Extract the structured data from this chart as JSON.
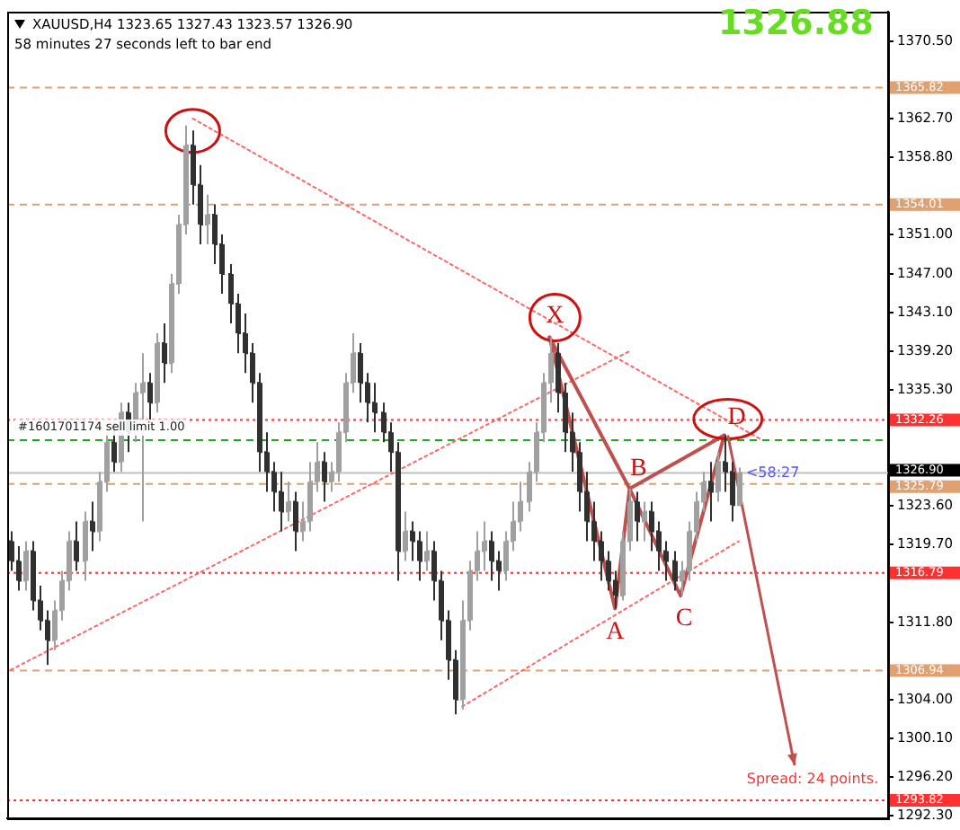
{
  "chart_data": {
    "type": "candlestick",
    "title": "XAUUSD,H4  1323.65 1327.43 1323.57 1326.90",
    "subtitle": "58 minutes 27 seconds left to bar end",
    "categories": [
      null,
      null,
      null,
      null,
      null,
      null,
      null,
      null,
      null,
      null,
      null,
      null,
      null,
      null,
      null,
      null,
      null,
      null,
      null,
      null,
      null,
      null,
      null,
      null,
      null,
      null,
      null,
      null,
      null,
      null,
      null,
      null,
      null,
      null,
      null,
      null,
      null,
      null,
      null,
      null,
      null,
      null,
      null,
      null,
      null,
      null,
      null,
      null,
      null,
      null,
      null,
      null,
      null,
      null,
      null,
      null,
      null,
      null,
      null,
      null,
      null,
      null,
      null,
      null,
      null,
      null,
      null,
      null,
      null,
      null,
      null,
      null,
      null,
      null,
      null,
      null,
      null,
      null,
      null,
      null,
      null,
      null,
      null,
      null,
      null,
      null,
      null,
      null,
      null,
      null,
      null,
      null,
      null,
      null,
      null,
      null,
      null,
      null,
      null,
      null,
      null,
      null,
      null,
      null,
      null,
      null,
      null,
      null,
      null,
      null,
      null,
      null,
      null,
      null,
      null,
      null,
      null,
      null,
      null,
      null,
      null
    ],
    "colors": [
      "#303030",
      "#303030",
      "#a0a0a0",
      "#303030",
      "#303030",
      "#303030",
      "#a0a0a0",
      "#a0a0a0",
      "#a0a0a0",
      "#303030",
      "#a0a0a0",
      "#303030",
      "#a0a0a0",
      "#a0a0a0",
      "#303030",
      "#a0a0a0",
      "#303030",
      "#a0a0a0",
      "#a0a0a0",
      "#303030",
      "#a0a0a0",
      "#303030",
      "#a0a0a0",
      "#a0a0a0",
      "#a0a0a0",
      "#303030",
      "#303030",
      "#a0a0a0",
      "#303030",
      "#303030",
      "#303030",
      "#303030",
      "#303030",
      "#303030",
      "#303030",
      "#303030",
      "#303030",
      "#303030",
      "#a0a0a0",
      "#303030",
      "#a0a0a0",
      "#a0a0a0",
      "#a0a0a0",
      "#303030",
      "#a0a0a0",
      "#a0a0a0",
      "#a0a0a0",
      "#a0a0a0",
      "#303030",
      "#303030",
      "#303030",
      "#303030",
      "#303030",
      "#303030",
      "#a0a0a0",
      "#303030",
      "#303030",
      "#a0a0a0",
      "#303030",
      "#303030",
      "#303030",
      "#303030",
      "#a0a0a0",
      "#a0a0a0",
      "#a0a0a0",
      "#a0a0a0",
      "#303030",
      "#303030",
      "#a0a0a0",
      "#a0a0a0",
      "#a0a0a0",
      "#a0a0a0",
      "#a0a0a0",
      "#a0a0a0",
      "#a0a0a0",
      "#303030",
      "#303030",
      "#303030",
      "#303030",
      "#303030",
      "#303030",
      "#303030",
      "#303030",
      "#303030",
      "#a0a0a0",
      "#a0a0a0",
      "#303030",
      "#a0a0a0",
      "#303030",
      "#303030",
      "#303030",
      "#303030",
      "#a0a0a0",
      "#a0a0a0",
      "#a0a0a0",
      "#a0a0a0",
      "#303030",
      "#a0a0a0",
      "#303030",
      "#303030",
      "#a0a0a0",
      null,
      null,
      null,
      null,
      null,
      null,
      null,
      null,
      null,
      null,
      null,
      null,
      null,
      null,
      null,
      null,
      null,
      null,
      null,
      null
    ],
    "ohlc": [
      [
        1320,
        1321,
        1317,
        1318
      ],
      [
        1318,
        1319.5,
        1315,
        1316
      ],
      [
        1316,
        1320,
        1315,
        1319
      ],
      [
        1319,
        1320,
        1313,
        1314
      ],
      [
        1314,
        1315.5,
        1311,
        1312
      ],
      [
        1312,
        1313,
        1307.5,
        1310
      ],
      [
        1310,
        1314,
        1309,
        1313
      ],
      [
        1313,
        1317,
        1312,
        1316
      ],
      [
        1316,
        1321,
        1315,
        1320
      ],
      [
        1320,
        1322,
        1317,
        1318
      ],
      [
        1318,
        1323,
        1316,
        1322
      ],
      [
        1322,
        1324,
        1319,
        1321
      ],
      [
        1321,
        1327,
        1320,
        1326
      ],
      [
        1326,
        1331,
        1325,
        1330
      ],
      [
        1330,
        1332,
        1327,
        1328
      ],
      [
        1328,
        1334,
        1327,
        1333
      ],
      [
        1333,
        1334,
        1329,
        1331
      ],
      [
        1331,
        1336,
        1330,
        1335
      ],
      [
        1335,
        1339,
        1322,
        1336
      ],
      [
        1336,
        1337,
        1332,
        1334
      ],
      [
        1334,
        1341,
        1333,
        1340
      ],
      [
        1340,
        1342,
        1336,
        1338
      ],
      [
        1338,
        1347,
        1337,
        1346
      ],
      [
        1346,
        1353,
        1345,
        1352
      ],
      [
        1352,
        1362,
        1351,
        1360
      ],
      [
        1360,
        1361.5,
        1354,
        1356
      ],
      [
        1356,
        1358,
        1350,
        1352
      ],
      [
        1352,
        1355,
        1350,
        1353
      ],
      [
        1353,
        1354,
        1348,
        1350
      ],
      [
        1350,
        1351,
        1345,
        1347
      ],
      [
        1347,
        1348,
        1342,
        1344
      ],
      [
        1344,
        1345,
        1339,
        1341
      ],
      [
        1341,
        1343,
        1337,
        1339
      ],
      [
        1339,
        1340,
        1334,
        1336
      ],
      [
        1336,
        1337,
        1327,
        1329
      ],
      [
        1329,
        1331,
        1325,
        1327
      ],
      [
        1327,
        1328,
        1323,
        1325
      ],
      [
        1325,
        1327,
        1321,
        1323
      ],
      [
        1323,
        1326,
        1322,
        1324
      ],
      [
        1324,
        1325,
        1319,
        1321
      ],
      [
        1321,
        1324,
        1320,
        1322
      ],
      [
        1322,
        1328,
        1321,
        1326
      ],
      [
        1326,
        1330,
        1325,
        1328
      ],
      [
        1328,
        1329,
        1324,
        1326
      ],
      [
        1326,
        1328,
        1325,
        1327
      ],
      [
        1327,
        1332,
        1326,
        1331
      ],
      [
        1331,
        1337,
        1330,
        1336
      ],
      [
        1336,
        1341,
        1335,
        1339
      ],
      [
        1339,
        1340,
        1334,
        1336
      ],
      [
        1336,
        1337,
        1332,
        1334
      ],
      [
        1334,
        1336,
        1331,
        1333
      ],
      [
        1333,
        1334,
        1330,
        1331
      ],
      [
        1331,
        1332,
        1327,
        1329
      ],
      [
        1329,
        1330,
        1316,
        1319
      ],
      [
        1319,
        1323,
        1318,
        1321
      ],
      [
        1321,
        1322,
        1318,
        1320
      ],
      [
        1320,
        1321,
        1316,
        1318
      ],
      [
        1318,
        1321,
        1317,
        1319
      ],
      [
        1319,
        1320,
        1314,
        1316
      ],
      [
        1316,
        1317,
        1310,
        1312
      ],
      [
        1312,
        1313,
        1306,
        1308
      ],
      [
        1308,
        1309,
        1302.5,
        1304
      ],
      [
        1304,
        1314,
        1303,
        1312
      ],
      [
        1312,
        1318,
        1311,
        1317
      ],
      [
        1317,
        1321,
        1316,
        1319
      ],
      [
        1319,
        1322,
        1317,
        1320
      ],
      [
        1320,
        1321,
        1316,
        1318
      ],
      [
        1318,
        1319,
        1315,
        1317
      ],
      [
        1317,
        1321,
        1316,
        1320
      ],
      [
        1320,
        1324,
        1319,
        1322
      ],
      [
        1322,
        1326,
        1321,
        1324
      ],
      [
        1324,
        1328,
        1323,
        1327
      ],
      [
        1327,
        1332,
        1326,
        1331
      ],
      [
        1331,
        1337,
        1330,
        1336
      ],
      [
        1336,
        1340.6,
        1334,
        1339
      ],
      [
        1339,
        1340,
        1333,
        1335
      ],
      [
        1335,
        1336,
        1329,
        1331
      ],
      [
        1331,
        1333,
        1327,
        1329
      ],
      [
        1329,
        1330,
        1323,
        1325
      ],
      [
        1325,
        1327,
        1320,
        1322
      ],
      [
        1322,
        1324,
        1318,
        1320
      ],
      [
        1320,
        1321,
        1316,
        1318
      ],
      [
        1318,
        1319,
        1315,
        1316
      ],
      [
        1316,
        1317,
        1313.2,
        1314.5
      ],
      [
        1314.5,
        1321,
        1314,
        1320
      ],
      [
        1320,
        1325.3,
        1319,
        1324
      ],
      [
        1324,
        1325,
        1320,
        1322
      ],
      [
        1322,
        1324,
        1320,
        1323
      ],
      [
        1323,
        1324,
        1319,
        1321
      ],
      [
        1321,
        1322,
        1317,
        1319
      ],
      [
        1319,
        1320,
        1316,
        1318
      ],
      [
        1318,
        1319,
        1315,
        1316
      ],
      [
        1316,
        1318,
        1314.5,
        1317
      ],
      [
        1317,
        1322,
        1316,
        1321
      ],
      [
        1321,
        1325,
        1320,
        1324
      ],
      [
        1324,
        1327,
        1323,
        1326
      ],
      [
        1326,
        1328,
        1322,
        1325
      ],
      [
        1325,
        1329,
        1324,
        1328
      ],
      [
        1328,
        1330.7,
        1325,
        1327
      ],
      [
        1327,
        1328,
        1322,
        1323.65
      ],
      [
        1323.65,
        1327.43,
        1323.57,
        1326.9
      ],
      null,
      null,
      null,
      null,
      null,
      null,
      null,
      null,
      null,
      null,
      null,
      null,
      null,
      null,
      null,
      null,
      null,
      null,
      null,
      null
    ],
    "series": [
      {
        "type": "line",
        "color": "#c0504d",
        "line_style": "solid",
        "values": [
          null,
          null,
          null,
          null,
          null,
          null,
          null,
          null,
          null,
          null,
          null,
          null,
          null,
          null,
          null,
          null,
          null,
          null,
          null,
          null,
          null,
          null,
          null,
          null,
          null,
          null,
          null,
          null,
          null,
          null,
          null,
          null,
          null,
          null,
          null,
          null,
          null,
          null,
          null,
          null,
          null,
          null,
          null,
          null,
          null,
          null,
          null,
          null,
          null,
          null,
          null,
          null,
          null,
          null,
          null,
          null,
          null,
          null,
          null,
          null,
          null,
          null,
          null,
          null,
          null,
          null,
          null,
          null,
          null,
          null,
          null,
          null,
          null,
          null,
          1340.6,
          null,
          null,
          null,
          null,
          null,
          null,
          null,
          null,
          1313.2,
          null,
          1325.3,
          null,
          null,
          null,
          null,
          null,
          null,
          1314.5,
          null,
          null,
          null,
          null,
          null,
          1330.7,
          null,
          null,
          null,
          null,
          null,
          null,
          null,
          null,
          null,
          null,
          null,
          null,
          null,
          null,
          null,
          null,
          null,
          null,
          null,
          null,
          null,
          null
        ]
      },
      {
        "type": "line",
        "color": "#c0504d",
        "line_style": "solid",
        "values": [
          null,
          null,
          null,
          null,
          null,
          null,
          null,
          null,
          null,
          null,
          null,
          null,
          null,
          null,
          null,
          null,
          null,
          null,
          null,
          null,
          null,
          null,
          null,
          null,
          null,
          null,
          null,
          null,
          null,
          null,
          null,
          null,
          null,
          null,
          null,
          null,
          null,
          null,
          null,
          null,
          null,
          null,
          null,
          null,
          null,
          null,
          null,
          null,
          null,
          null,
          null,
          null,
          null,
          null,
          null,
          null,
          null,
          null,
          null,
          null,
          null,
          null,
          null,
          null,
          null,
          null,
          null,
          null,
          null,
          null,
          null,
          null,
          null,
          null,
          1340.6,
          null,
          null,
          null,
          null,
          null,
          null,
          null,
          null,
          null,
          null,
          1325.3,
          null,
          null,
          null,
          null,
          null,
          null,
          null,
          null,
          null,
          null,
          null,
          null,
          1330.7,
          null,
          null,
          null,
          null,
          null,
          null,
          null,
          null,
          null,
          null,
          null,
          null,
          null,
          null,
          null,
          null,
          null,
          null,
          null,
          null,
          null,
          null
        ]
      },
      {
        "type": "line",
        "color": "#ff6666",
        "line_style": "dotted",
        "values": [
          null,
          null,
          null,
          null,
          null,
          null,
          null,
          null,
          null,
          null,
          null,
          null,
          null,
          null,
          null,
          null,
          null,
          null,
          null,
          null,
          null,
          null,
          null,
          null,
          null,
          1362.7,
          null,
          null,
          null,
          null,
          null,
          null,
          null,
          null,
          null,
          null,
          null,
          null,
          null,
          null,
          null,
          null,
          null,
          null,
          null,
          null,
          null,
          null,
          null,
          null,
          null,
          null,
          null,
          null,
          null,
          null,
          null,
          null,
          null,
          null,
          null,
          null,
          null,
          null,
          null,
          null,
          null,
          null,
          null,
          null,
          null,
          null,
          null,
          null,
          null,
          null,
          null,
          null,
          null,
          null,
          null,
          null,
          null,
          null,
          null,
          null,
          null,
          null,
          null,
          null,
          null,
          null,
          null,
          null,
          null,
          null,
          null,
          null,
          null,
          null,
          null,
          null,
          null,
          1330.3,
          null,
          null,
          null,
          null,
          null,
          null,
          null,
          null,
          null,
          null,
          null,
          null,
          null,
          null,
          null,
          null,
          null
        ]
      },
      {
        "type": "line",
        "color": "#ff6666",
        "line_style": "dotted",
        "values": [
          1307.0,
          null,
          null,
          null,
          null,
          null,
          null,
          null,
          null,
          null,
          null,
          null,
          null,
          null,
          null,
          null,
          null,
          null,
          null,
          null,
          null,
          null,
          null,
          null,
          null,
          null,
          null,
          null,
          null,
          null,
          null,
          null,
          null,
          null,
          null,
          null,
          null,
          null,
          null,
          null,
          null,
          null,
          null,
          null,
          null,
          null,
          null,
          null,
          null,
          null,
          null,
          null,
          null,
          null,
          null,
          null,
          null,
          null,
          null,
          null,
          null,
          null,
          null,
          null,
          null,
          null,
          null,
          null,
          null,
          null,
          null,
          null,
          null,
          null,
          null,
          null,
          null,
          null,
          null,
          null,
          null,
          null,
          null,
          null,
          null,
          1339.2,
          null,
          null,
          null,
          null,
          null,
          null,
          null,
          null,
          null,
          null,
          null,
          null,
          null,
          null,
          null,
          null,
          null,
          null,
          null,
          null,
          null,
          null,
          null,
          null,
          null,
          null,
          null,
          null,
          null,
          null,
          null,
          null,
          null,
          null,
          null
        ]
      },
      {
        "type": "line",
        "color": "#ff6666",
        "line_style": "dotted",
        "values": [
          null,
          null,
          null,
          null,
          null,
          null,
          null,
          null,
          null,
          null,
          null,
          null,
          null,
          null,
          null,
          null,
          null,
          null,
          null,
          null,
          null,
          null,
          null,
          null,
          null,
          null,
          null,
          null,
          null,
          null,
          null,
          null,
          null,
          null,
          null,
          null,
          null,
          null,
          null,
          null,
          null,
          null,
          null,
          null,
          null,
          null,
          null,
          null,
          null,
          null,
          null,
          null,
          null,
          null,
          null,
          null,
          null,
          null,
          null,
          null,
          null,
          null,
          1303.3,
          null,
          null,
          null,
          null,
          null,
          null,
          null,
          null,
          null,
          null,
          null,
          null,
          null,
          null,
          null,
          null,
          null,
          null,
          null,
          null,
          null,
          null,
          null,
          null,
          null,
          null,
          null,
          null,
          null,
          null,
          null,
          null,
          null,
          null,
          null,
          null,
          null,
          1320.0,
          null,
          null,
          null,
          null,
          null,
          null,
          null,
          null,
          null,
          null,
          null,
          null,
          null,
          null,
          null,
          null,
          null,
          null,
          null,
          null
        ]
      }
    ],
    "ylim": [
      1292.0,
      1373.5
    ],
    "yticks": [
      {
        "value": 1370.5,
        "label": "1370.50"
      },
      {
        "value": 1362.7,
        "label": "1362.70"
      },
      {
        "value": 1358.8,
        "label": "1358.80"
      },
      {
        "value": 1351.0,
        "label": "1351.00"
      },
      {
        "value": 1347.0,
        "label": "1347.00"
      },
      {
        "value": 1343.1,
        "label": "1343.10"
      },
      {
        "value": 1339.2,
        "label": "1339.20"
      },
      {
        "value": 1335.3,
        "label": "1335.30"
      },
      {
        "value": 1323.6,
        "label": "1323.60"
      },
      {
        "value": 1319.7,
        "label": "1319.70"
      },
      {
        "value": 1311.8,
        "label": "1311.80"
      },
      {
        "value": 1304.0,
        "label": "1304.00"
      },
      {
        "value": 1300.1,
        "label": "1300.10"
      },
      {
        "value": 1296.2,
        "label": "1296.20"
      },
      {
        "value": 1292.3,
        "label": "1292.30"
      }
    ],
    "ref_lines": [
      {
        "axis": "y",
        "value": 1365.82,
        "label": "1365.82",
        "color": "#e0a070",
        "line_style": "dashed"
      },
      {
        "axis": "y",
        "value": 1354.01,
        "label": "1354.01",
        "color": "#e0a070",
        "line_style": "dashed"
      },
      {
        "axis": "y",
        "value": 1332.26,
        "label": "1332.26",
        "color": "#ff3030",
        "line_style": "dotted"
      },
      {
        "axis": "y",
        "value": 1330.2,
        "label": "#1601701174 sell limit 1.00",
        "color": "#22aa22",
        "line_style": "dashed"
      },
      {
        "axis": "y",
        "value": 1326.9,
        "label": "1326.90",
        "color": "#c0c0c0",
        "line_style": "solid"
      },
      {
        "axis": "y",
        "value": 1325.79,
        "label": "1325.79",
        "color": "#e0a070",
        "line_style": "dashed"
      },
      {
        "axis": "y",
        "value": 1316.79,
        "label": "1316.79",
        "color": "#ff3030",
        "line_style": "dotted"
      },
      {
        "axis": "y",
        "value": 1306.94,
        "label": "1306.94",
        "color": "#e0a070",
        "line_style": "dashed"
      },
      {
        "axis": "y",
        "value": 1293.82,
        "label": "1293.82",
        "color": "#ff3030",
        "line_style": "dotted"
      }
    ],
    "annotations": [
      "1326.88",
      "Spread: 24 points.",
      "<58:27",
      {
        "text": "X",
        "y": 1340.6
      },
      {
        "text": "A",
        "y": 1313.2
      },
      {
        "text": "B",
        "y": 1325.3
      },
      {
        "text": "C",
        "y": 1314.5
      },
      {
        "text": "D",
        "y": 1330.7
      }
    ],
    "tick_labels": "y",
    "grid": false,
    "legend": false
  }
}
